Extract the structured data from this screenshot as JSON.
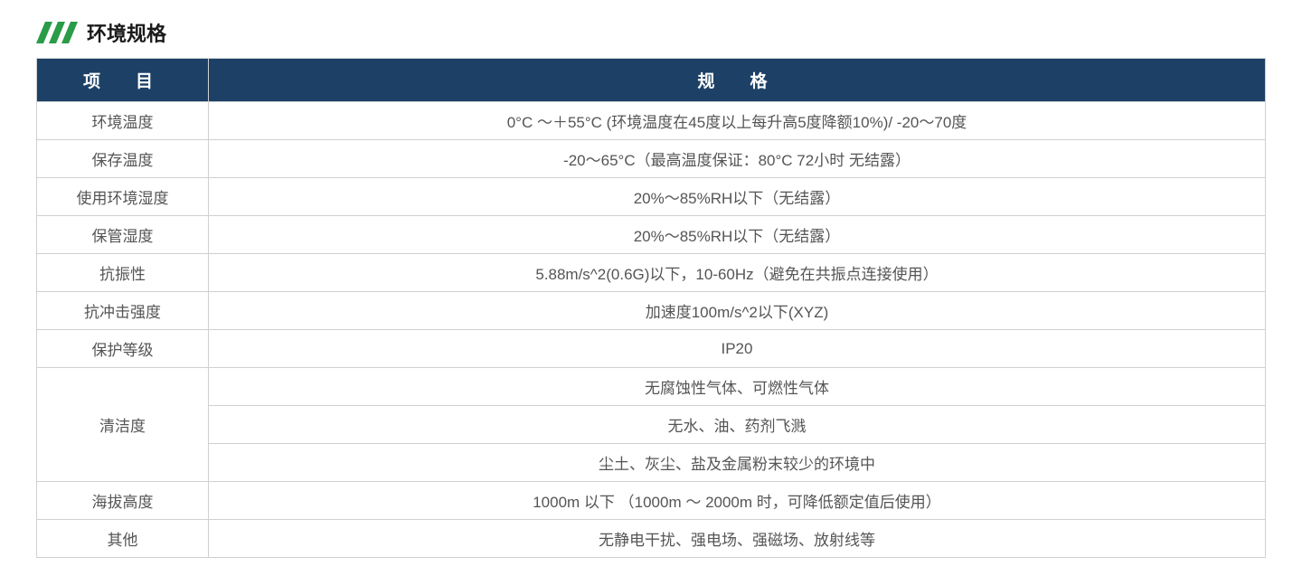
{
  "section": {
    "title": "环境规格"
  },
  "logo": {
    "color": "#2a9b47"
  },
  "table": {
    "headers": {
      "col1": "项　目",
      "col2": "规　格"
    },
    "header_bg": "#1d4166",
    "header_text_color": "#ffffff",
    "border_color": "#d0d0d0",
    "cell_text_color": "#555555",
    "label_fontsize": 17,
    "header_fontsize": 19,
    "col1_width": 190,
    "rows": [
      {
        "label": "环境温度",
        "values": [
          "0°C ～＋55°C (环境温度在45度以上每升高5度降额10%)/ -20～70度"
        ]
      },
      {
        "label": "保存温度",
        "values": [
          "-20～65°C（最高温度保证：80°C 72小时 无结露）"
        ]
      },
      {
        "label": "使用环境湿度",
        "values": [
          "20%～85%RH以下（无结露）"
        ]
      },
      {
        "label": "保管湿度",
        "values": [
          "20%～85%RH以下（无结露）"
        ]
      },
      {
        "label": "抗振性",
        "values": [
          "5.88m/s^2(0.6G)以下，10-60Hz（避免在共振点连接使用）"
        ]
      },
      {
        "label": "抗冲击强度",
        "values": [
          "加速度100m/s^2以下(XYZ)"
        ]
      },
      {
        "label": "保护等级",
        "values": [
          "IP20"
        ]
      },
      {
        "label": "清洁度",
        "values": [
          "无腐蚀性气体、可燃性气体",
          "无水、油、药剂飞溅",
          "尘土、灰尘、盐及金属粉末较少的环境中"
        ]
      },
      {
        "label": "海拔高度",
        "values": [
          "1000m 以下 （1000m ～ 2000m 时，可降低额定值后使用）"
        ]
      },
      {
        "label": "其他",
        "values": [
          "无静电干扰、强电场、强磁场、放射线等"
        ]
      }
    ]
  }
}
